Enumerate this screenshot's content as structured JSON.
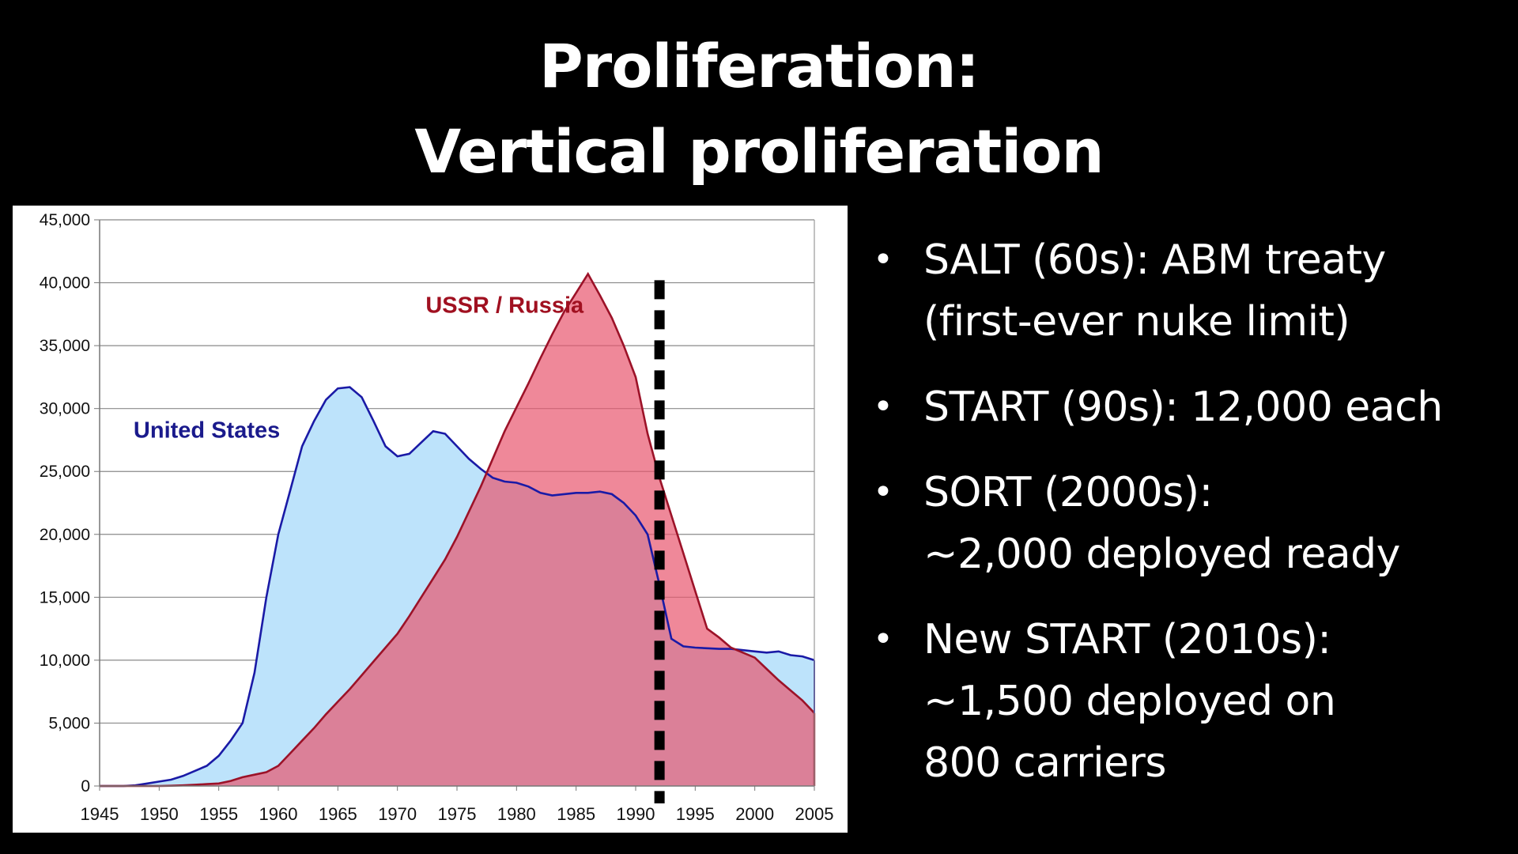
{
  "slide": {
    "title_lines": [
      "Proliferation:",
      "Vertical proliferation"
    ],
    "bullets": [
      {
        "lines": [
          "SALT (60s): ABM treaty",
          "(first-ever nuke limit)"
        ]
      },
      {
        "lines": [
          "START (90s): 12,000 each"
        ]
      },
      {
        "lines": [
          "SORT (2000s):",
          "~2,000 deployed ready"
        ]
      },
      {
        "lines": [
          "New START (2010s):",
          "~1,500 deployed on",
          "800 carriers"
        ]
      }
    ]
  },
  "colors": {
    "background": "#000000",
    "text": "#ffffff",
    "us_fill": "#bde3fb",
    "us_line": "#1a1aa6",
    "ussr_fill": "#e8566d",
    "ussr_line": "#9c1228",
    "ussr_label": "#a01020",
    "us_label": "#1a1a8c",
    "marker": "#000000"
  },
  "chart_data": {
    "type": "area",
    "title": "",
    "xlabel": "",
    "ylabel": "",
    "xlim": [
      1945,
      2005
    ],
    "ylim": [
      0,
      45000
    ],
    "x_ticks": [
      1945,
      1950,
      1955,
      1960,
      1965,
      1970,
      1975,
      1980,
      1985,
      1990,
      1995,
      2000,
      2005
    ],
    "x_tick_labels": [
      "1945",
      "1950",
      "1955",
      "1960",
      "1965",
      "1970",
      "1975",
      "1980",
      "1985",
      "1990",
      "1995",
      "2000",
      "2005"
    ],
    "y_ticks": [
      0,
      5000,
      10000,
      15000,
      20000,
      25000,
      30000,
      35000,
      40000,
      45000
    ],
    "y_tick_labels": [
      "0",
      "5,000",
      "10,000",
      "15,000",
      "20,000",
      "25,000",
      "30,000",
      "35,000",
      "40,000",
      "45,000"
    ],
    "grid": "horizontal",
    "vertical_marker": {
      "x": 1992,
      "style": "dashed"
    },
    "series": [
      {
        "name": "United States",
        "x": [
          1945,
          1946,
          1947,
          1948,
          1949,
          1950,
          1951,
          1952,
          1953,
          1954,
          1955,
          1956,
          1957,
          1958,
          1959,
          1960,
          1961,
          1962,
          1963,
          1964,
          1965,
          1966,
          1967,
          1968,
          1969,
          1970,
          1971,
          1972,
          1973,
          1974,
          1975,
          1976,
          1977,
          1978,
          1979,
          1980,
          1981,
          1982,
          1983,
          1984,
          1985,
          1986,
          1987,
          1988,
          1989,
          1990,
          1991,
          1992,
          1993,
          1994,
          1995,
          1996,
          1997,
          1998,
          1999,
          2000,
          2001,
          2002,
          2003,
          2004,
          2005
        ],
        "values": [
          0,
          0,
          0,
          50,
          200,
          350,
          500,
          800,
          1200,
          1600,
          2400,
          3600,
          5000,
          9000,
          15000,
          20000,
          23500,
          27000,
          29000,
          30700,
          31600,
          31700,
          30900,
          29000,
          27000,
          26200,
          26400,
          27300,
          28200,
          28000,
          27000,
          26000,
          25200,
          24500,
          24200,
          24100,
          23800,
          23300,
          23100,
          23200,
          23300,
          23300,
          23400,
          23200,
          22500,
          21500,
          20000,
          16000,
          11700,
          11100,
          11000,
          10950,
          10900,
          10900,
          10800,
          10700,
          10600,
          10700,
          10400,
          10300,
          10000
        ]
      },
      {
        "name": "USSR / Russia",
        "x": [
          1945,
          1946,
          1947,
          1948,
          1949,
          1950,
          1951,
          1952,
          1953,
          1954,
          1955,
          1956,
          1957,
          1958,
          1959,
          1960,
          1961,
          1962,
          1963,
          1964,
          1965,
          1966,
          1967,
          1968,
          1969,
          1970,
          1971,
          1972,
          1973,
          1974,
          1975,
          1976,
          1977,
          1978,
          1979,
          1980,
          1981,
          1982,
          1983,
          1984,
          1985,
          1986,
          1987,
          1988,
          1989,
          1990,
          1991,
          1992,
          1993,
          1994,
          1995,
          1996,
          1997,
          1998,
          1999,
          2000,
          2001,
          2002,
          2003,
          2004,
          2005
        ],
        "values": [
          0,
          0,
          0,
          0,
          0,
          0,
          20,
          50,
          100,
          150,
          200,
          400,
          700,
          900,
          1100,
          1600,
          2600,
          3600,
          4600,
          5700,
          6700,
          7700,
          8800,
          9900,
          11000,
          12100,
          13500,
          15000,
          16500,
          18000,
          19800,
          21800,
          23800,
          26000,
          28200,
          30100,
          32000,
          34000,
          35900,
          37700,
          39200,
          40700,
          39000,
          37200,
          35000,
          32500,
          28000,
          24500,
          21500,
          18500,
          15500,
          12500,
          11800,
          11000,
          10600,
          10200,
          9300,
          8400,
          7600,
          6800,
          5800
        ]
      }
    ],
    "annotations": [
      {
        "text": "USSR / Russia",
        "x": 1979,
        "y": 37600,
        "series": "USSR / Russia"
      },
      {
        "text": "United States",
        "x": 1954,
        "y": 27700,
        "series": "United States"
      }
    ]
  }
}
